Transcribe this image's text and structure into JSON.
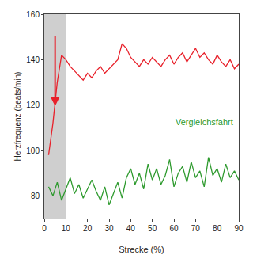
{
  "chart_data": {
    "type": "line",
    "x_label": "Strecke (%)",
    "y_label": "Herzfrequenz (beats/min)",
    "x": [
      2,
      4,
      6,
      8,
      10,
      12,
      14,
      16,
      18,
      20,
      22,
      24,
      26,
      28,
      30,
      32,
      34,
      36,
      38,
      40,
      42,
      44,
      46,
      48,
      50,
      52,
      54,
      56,
      58,
      60,
      62,
      64,
      66,
      68,
      70,
      72,
      74,
      76,
      78,
      80,
      82,
      84,
      86,
      88,
      90
    ],
    "series": [
      {
        "color": "#e8202a",
        "values": [
          98,
          112,
          130,
          142,
          140,
          137,
          135,
          133,
          131,
          134,
          132,
          135,
          137,
          134,
          136,
          138,
          140,
          147,
          145,
          141,
          139,
          137,
          140,
          138,
          141,
          139,
          137,
          140,
          142,
          138,
          141,
          143,
          139,
          142,
          145,
          141,
          143,
          140,
          138,
          142,
          139,
          137,
          140,
          136,
          138
        ]
      },
      {
        "name": "Vergleichsfahrt",
        "color": "#2e9a2e",
        "values": [
          84,
          80,
          86,
          78,
          83,
          88,
          81,
          85,
          79,
          83,
          87,
          82,
          78,
          84,
          76,
          81,
          86,
          79,
          88,
          92,
          85,
          90,
          83,
          94,
          87,
          92,
          85,
          89,
          96,
          84,
          90,
          93,
          86,
          95,
          88,
          91,
          84,
          97,
          89,
          92,
          86,
          94,
          88,
          91,
          87
        ]
      }
    ],
    "highlight_x": [
      0,
      10
    ],
    "xlim": [
      0,
      90
    ],
    "xticks": [
      0,
      10,
      20,
      30,
      40,
      50,
      60,
      70,
      80,
      90
    ],
    "ylim": [
      70,
      160
    ],
    "yticks": [
      80,
      100,
      120,
      140,
      160
    ],
    "grid": false
  }
}
